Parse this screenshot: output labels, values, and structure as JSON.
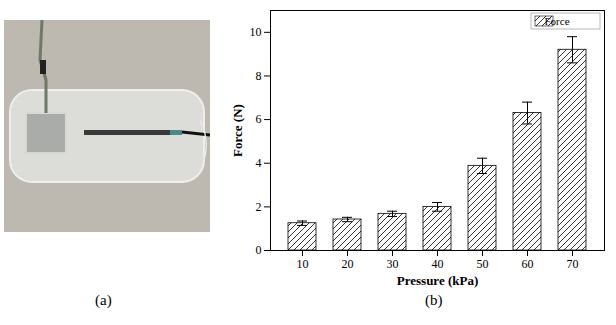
{
  "chart_data": {
    "type": "bar",
    "x_label": "Pressure (kPa)",
    "y_label": "Force (N)",
    "categories": [
      "10",
      "20",
      "30",
      "40",
      "50",
      "60",
      "70"
    ],
    "series": [
      {
        "name": "Force",
        "values": [
          1.25,
          1.42,
          1.68,
          2.0,
          3.88,
          6.3,
          9.2
        ],
        "errors": [
          0.1,
          0.1,
          0.12,
          0.2,
          0.35,
          0.5,
          0.6
        ]
      }
    ],
    "ylim": [
      0,
      11
    ],
    "yticks": [
      0,
      2,
      4,
      6,
      8,
      10
    ],
    "grid": false,
    "legend": "top-right"
  },
  "figure": {
    "panel_labels": [
      "(a)",
      "(b)"
    ]
  }
}
